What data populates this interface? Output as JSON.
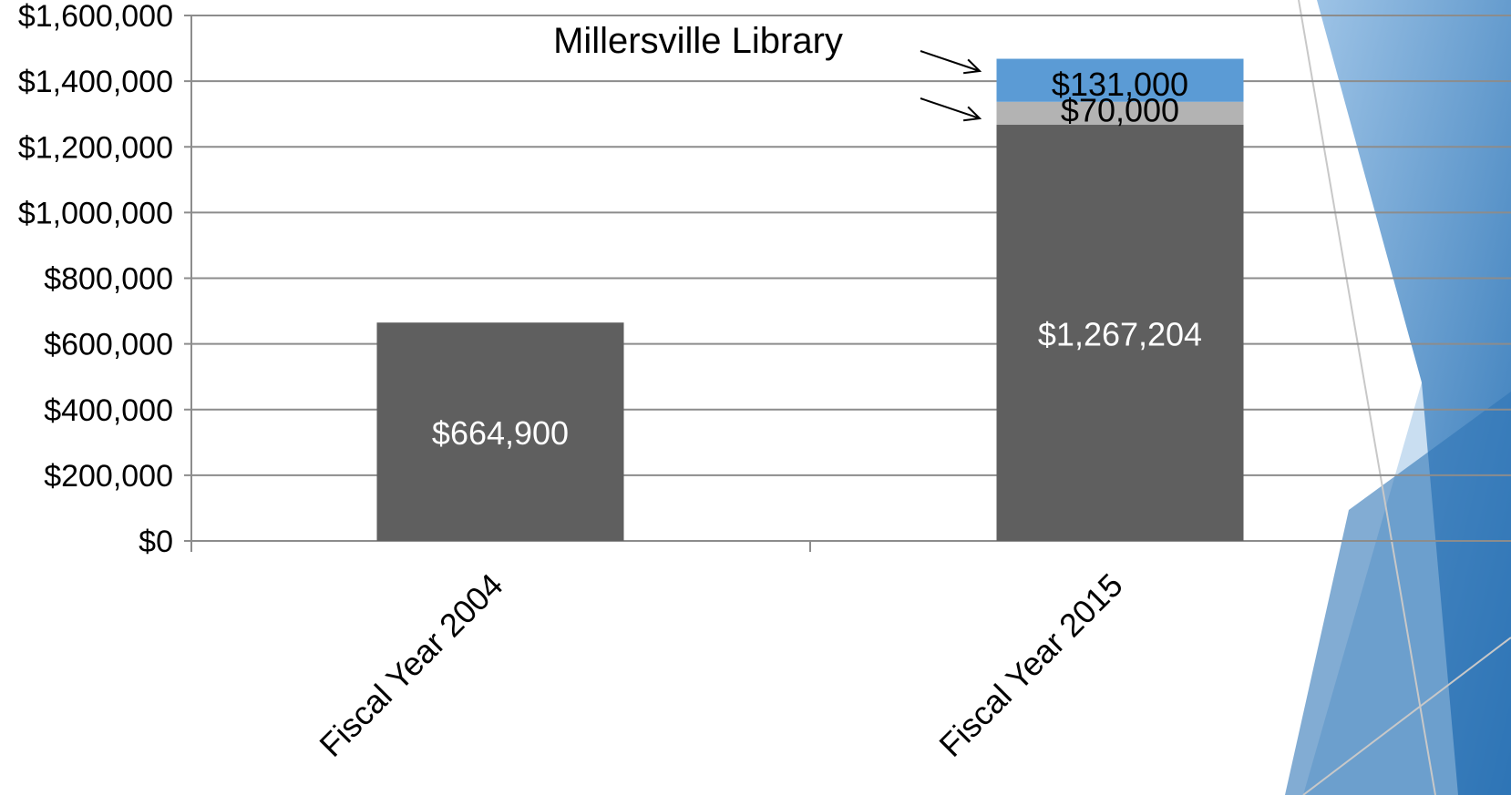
{
  "chart_data": {
    "type": "bar",
    "stacked": true,
    "title": "",
    "xlabel": "",
    "ylabel": "",
    "ylim": [
      0,
      1600000
    ],
    "yticks": [
      0,
      200000,
      400000,
      600000,
      800000,
      1000000,
      1200000,
      1400000,
      1600000
    ],
    "ytick_labels": [
      "$0",
      "$200,000",
      "$400,000",
      "$600,000",
      "$800,000",
      "$1,000,000",
      "$1,200,000",
      "$1,400,000",
      "$1,600,000"
    ],
    "categories": [
      "Fiscal Year 2004",
      "Fiscal Year 2015"
    ],
    "series": [
      {
        "values": [
          664900,
          1267204
        ],
        "color": "#5f5f5f",
        "labels": [
          "$664,900",
          "$1,267,204"
        ],
        "label_color": "#ffffff"
      },
      {
        "values": [
          0,
          70000
        ],
        "color": "#b3b3b3",
        "labels": [
          "",
          "$70,000"
        ],
        "label_color": "#000000"
      },
      {
        "values": [
          0,
          131000
        ],
        "color": "#5b9bd5",
        "labels": [
          "",
          "$131,000"
        ],
        "label_color": "#000000"
      }
    ],
    "annotation": "Millersville Library",
    "grid": true,
    "legend": "none"
  },
  "colors": {
    "gridline": "#8c8c8c",
    "background_accent": "#2e75b6",
    "background_accent_light": "#9dc3e6"
  }
}
